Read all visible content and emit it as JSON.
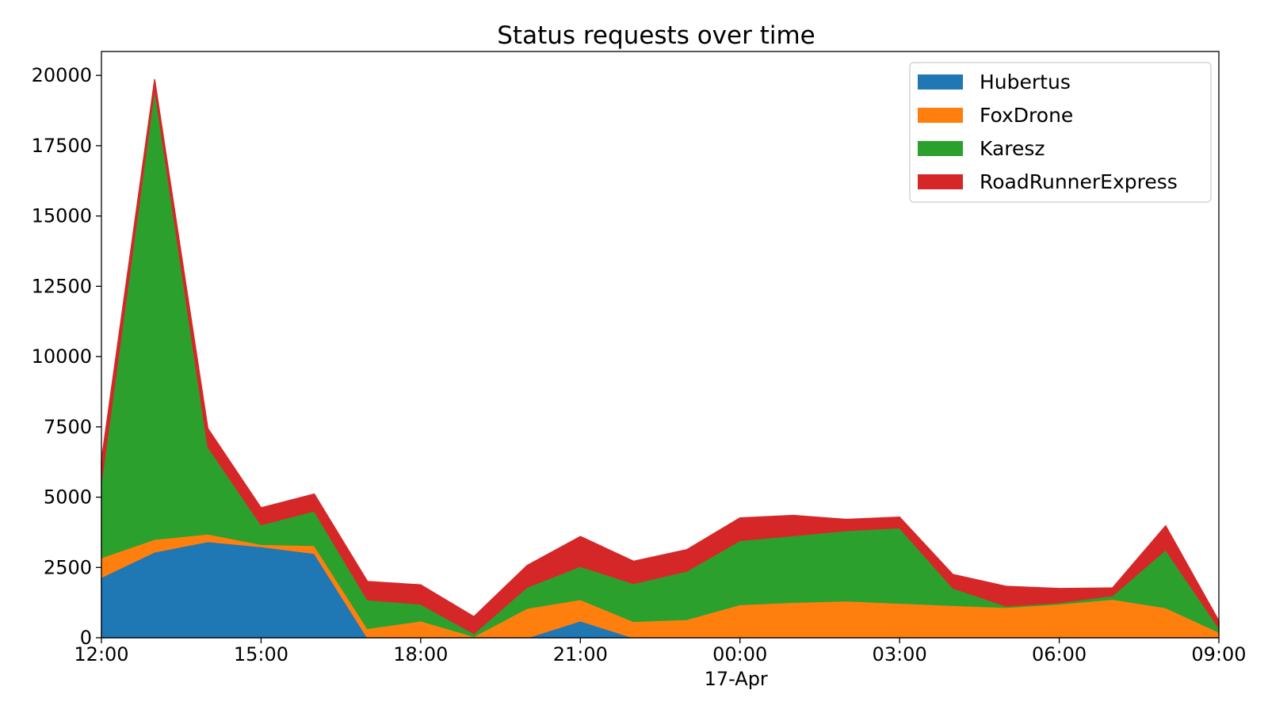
{
  "chart_data": {
    "type": "area",
    "stacked": true,
    "title": "Status requests over time",
    "xlabel": "",
    "ylabel": "",
    "x": [
      "16-Apr 12:00",
      "16-Apr 13:00",
      "16-Apr 14:00",
      "16-Apr 15:00",
      "16-Apr 16:00",
      "16-Apr 17:00",
      "16-Apr 18:00",
      "16-Apr 19:00",
      "16-Apr 20:00",
      "16-Apr 21:00",
      "16-Apr 22:00",
      "16-Apr 23:00",
      "17-Apr 00:00",
      "17-Apr 01:00",
      "17-Apr 02:00",
      "17-Apr 03:00",
      "17-Apr 04:00",
      "17-Apr 05:00",
      "17-Apr 06:00",
      "17-Apr 07:00",
      "17-Apr 08:00",
      "17-Apr 09:00"
    ],
    "xticks": [
      {
        "label": "12:00",
        "sub": ""
      },
      {
        "label": "15:00",
        "sub": ""
      },
      {
        "label": "18:00",
        "sub": ""
      },
      {
        "label": "21:00",
        "sub": ""
      },
      {
        "label": "00:00",
        "sub": "17-Apr"
      },
      {
        "label": "03:00",
        "sub": ""
      },
      {
        "label": "06:00",
        "sub": ""
      },
      {
        "label": "09:00",
        "sub": ""
      }
    ],
    "yticks": [
      "0",
      "2500",
      "5000",
      "7500",
      "10000",
      "12500",
      "15000",
      "17500",
      "20000"
    ],
    "ylim": [
      0,
      20850
    ],
    "series": [
      {
        "name": "Hubertus",
        "color": "#1f77b4",
        "values": [
          2150,
          3050,
          3420,
          3240,
          3000,
          0,
          0,
          0,
          0,
          600,
          0,
          0,
          0,
          0,
          0,
          0,
          0,
          0,
          0,
          0,
          0,
          0
        ]
      },
      {
        "name": "FoxDrone",
        "color": "#ff7f0e",
        "values": [
          700,
          450,
          270,
          80,
          280,
          330,
          600,
          50,
          1050,
          760,
          580,
          650,
          1180,
          1260,
          1310,
          1230,
          1150,
          1080,
          1200,
          1370,
          1070,
          200
        ]
      },
      {
        "name": "Karesz",
        "color": "#2ca02c",
        "values": [
          2700,
          16050,
          3100,
          700,
          1230,
          1020,
          600,
          100,
          750,
          1180,
          1350,
          1720,
          2280,
          2370,
          2500,
          2680,
          620,
          50,
          50,
          130,
          2060,
          150
        ]
      },
      {
        "name": "RoadRunnerExpress",
        "color": "#d62728",
        "values": [
          750,
          300,
          650,
          600,
          600,
          650,
          680,
          600,
          770,
          1060,
          790,
          760,
          800,
          720,
          400,
          380,
          480,
          700,
          500,
          270,
          850,
          250
        ]
      }
    ],
    "legend_position": "upper-right",
    "grid": false
  }
}
